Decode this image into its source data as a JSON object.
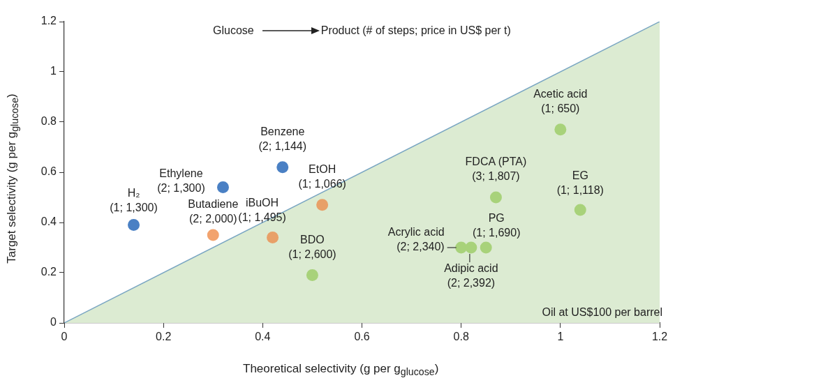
{
  "chart_data": {
    "type": "scatter",
    "xlabel": "Theoretical selectivity (g per g$_{glucose}$)",
    "ylabel": "Target selectivity (g per g$_{glucose}$)",
    "xlim": [
      0,
      1.2
    ],
    "ylim": [
      0,
      1.2
    ],
    "xticks": [
      0,
      0.2,
      0.4,
      0.6,
      0.8,
      1,
      1.2
    ],
    "yticks": [
      0,
      0.2,
      0.4,
      0.6,
      0.8,
      1,
      1.2
    ],
    "grid": false,
    "legend": false,
    "marker": "circle",
    "series": [
      {
        "type": "area",
        "marker": "none",
        "color": "#dcebd2",
        "x": [
          0,
          1.2
        ],
        "values": [
          0,
          1.2
        ]
      },
      {
        "x": [
          0.14,
          0.32,
          0.44,
          0.3,
          0.42,
          0.52,
          0.5,
          0.8,
          0.82,
          0.85,
          0.87,
          1.0,
          1.04
        ],
        "values": [
          0.39,
          0.54,
          0.62,
          0.35,
          0.34,
          0.47,
          0.19,
          0.3,
          0.3,
          0.3,
          0.5,
          0.77,
          0.45
        ],
        "colors": [
          "#4a80c4",
          "#4a80c4",
          "#4a80c4",
          "#f2a36e",
          "#e8a068",
          "#e8a068",
          "#a8d27a",
          "#a8d27a",
          "#a8d27a",
          "#a8d27a",
          "#a8d27a",
          "#a8d27a",
          "#a8d27a"
        ]
      }
    ],
    "annotations": [
      "Glucose",
      "Product (# of steps; price in US$ per t)",
      "Oil at US$100 per barrel",
      {
        "text": "H₂\n(1; 1,300)",
        "x": 0.14,
        "y": 0.39
      },
      {
        "text": "Ethylene\n(2; 1,300)",
        "x": 0.32,
        "y": 0.54
      },
      {
        "text": "Benzene\n(2; 1,144)",
        "x": 0.44,
        "y": 0.62
      },
      {
        "text": "Butadiene\n(2; 2,000)",
        "x": 0.3,
        "y": 0.35
      },
      {
        "text": "iBuOH\n(1; 1,495)",
        "x": 0.42,
        "y": 0.34
      },
      {
        "text": "EtOH\n(1; 1,066)",
        "x": 0.52,
        "y": 0.47
      },
      {
        "text": "BDO\n(1; 2,600)",
        "x": 0.5,
        "y": 0.19
      },
      {
        "text": "Acrylic acid\n(2; 2,340)",
        "x": 0.8,
        "y": 0.3
      },
      {
        "text": "Adipic acid\n(2; 2,392)",
        "x": 0.82,
        "y": 0.3
      },
      {
        "text": "PG\n(1; 1,690)",
        "x": 0.85,
        "y": 0.3
      },
      {
        "text": "FDCA (PTA)\n(3; 1,807)",
        "x": 0.87,
        "y": 0.5
      },
      {
        "text": "Acetic acid\n(1; 650)",
        "x": 1.0,
        "y": 0.77
      },
      {
        "text": "EG\n(1; 1,118)",
        "x": 1.04,
        "y": 0.45
      }
    ]
  }
}
